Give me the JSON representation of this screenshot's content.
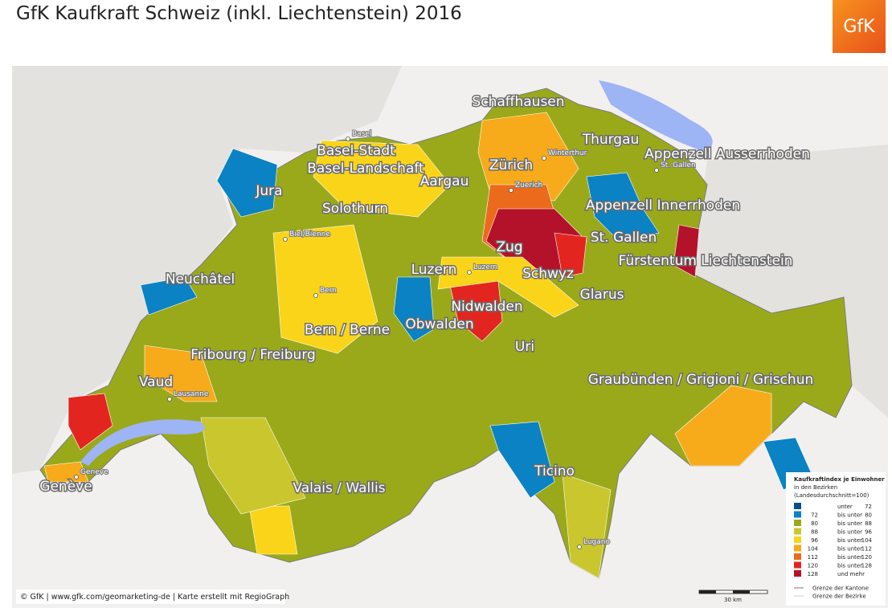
{
  "header": {
    "title": "GfK Kaufkraft Schweiz (inkl. Liechtenstein) 2016",
    "logo": "GfK"
  },
  "map": {
    "cantons": [
      "Schaffhausen",
      "Thurgau",
      "Appenzell Ausserrhoden",
      "Basel-Stadt",
      "Basel-Landschaft",
      "Zürich",
      "Aargau",
      "Jura",
      "Solothurn",
      "Appenzell Innerrhoden",
      "St. Gallen",
      "Zug",
      "Fürstentum Liechtenstein",
      "Luzern",
      "Schwyz",
      "Neuchâtel",
      "Glarus",
      "Nidwalden",
      "Obwalden",
      "Bern / Berne",
      "Uri",
      "Fribourg / Freiburg",
      "Vaud",
      "Graubünden / Grigioni / Grischun",
      "Ticino",
      "Genève",
      "Valais / Wallis"
    ],
    "cities": [
      "Basel",
      "Winterthur",
      "St. Gallen",
      "Zuerich",
      "Biel/Bienne",
      "Luzern",
      "Bern",
      "Lausanne",
      "Geneve",
      "Lugano"
    ]
  },
  "legend": {
    "title": "Kaufkraftindex je Einwohner",
    "subtitle": "in den Bezirken",
    "note": "(Landesdurchschnitt=100)",
    "classes": [
      {
        "color": "#0a4f8a",
        "label": "unter",
        "to": "72"
      },
      {
        "color": "#0a82c4",
        "from": "72",
        "label": "bis unter",
        "to": "80"
      },
      {
        "color": "#9aa91a",
        "from": "80",
        "label": "bis unter",
        "to": "88"
      },
      {
        "color": "#c9c62e",
        "from": "88",
        "label": "bis unter",
        "to": "96"
      },
      {
        "color": "#fad419",
        "from": "96",
        "label": "bis unter",
        "to": "104"
      },
      {
        "color": "#f7aa1a",
        "from": "104",
        "label": "bis unter",
        "to": "112"
      },
      {
        "color": "#ec6a1c",
        "from": "112",
        "label": "bis unter",
        "to": "120"
      },
      {
        "color": "#e2261f",
        "from": "120",
        "label": "bis unter",
        "to": "128"
      },
      {
        "color": "#b4122b",
        "from": "128",
        "label": "und mehr"
      }
    ],
    "boundaries": [
      "Grenze der Kantone",
      "Grenze der Bezirke"
    ]
  },
  "scale": "30 km",
  "footer": "© GfK | www.gfk.com/geomarketing-de | Karte erstellt mit RegioGraph"
}
